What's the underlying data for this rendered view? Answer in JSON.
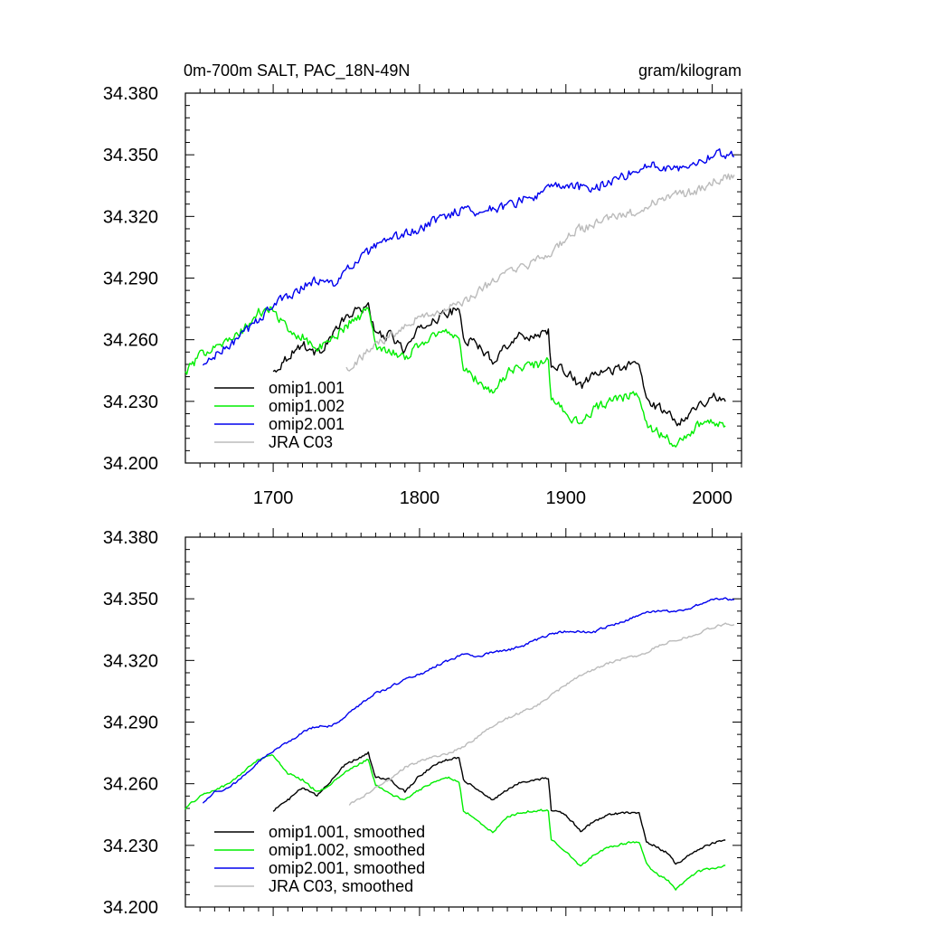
{
  "title_left": "0m-700m SALT, PAC_18N-49N",
  "title_right": "gram/kilogram",
  "chart_data": [
    {
      "type": "line",
      "xlim": [
        1640,
        2020
      ],
      "ylim": [
        34.2,
        34.38
      ],
      "xticks": [
        1700,
        1800,
        1900,
        2000
      ],
      "xtick_labels": [
        "1700",
        "1800",
        "1900",
        "2000"
      ],
      "yticks": [
        34.2,
        34.23,
        34.26,
        34.29,
        34.32,
        34.35,
        34.38
      ],
      "ytick_labels": [
        "34.200",
        "34.230",
        "34.260",
        "34.290",
        "34.320",
        "34.350",
        "34.380"
      ],
      "legend_position": "bottom-left",
      "series": [
        {
          "name": "omip1.001",
          "color": "#000000",
          "noise": 0.0032,
          "x": [
            1700,
            1710,
            1720,
            1730,
            1740,
            1750,
            1760,
            1765,
            1770,
            1780,
            1790,
            1800,
            1810,
            1820,
            1827,
            1830,
            1840,
            1850,
            1860,
            1870,
            1880,
            1888,
            1890,
            1900,
            1910,
            1920,
            1930,
            1940,
            1950,
            1955,
            1960,
            1970,
            1975,
            1980,
            1990,
            2000,
            2009
          ],
          "y": [
            34.244,
            34.252,
            34.258,
            34.253,
            34.262,
            34.271,
            34.275,
            34.277,
            34.262,
            34.262,
            34.255,
            34.265,
            34.27,
            34.273,
            34.275,
            34.261,
            34.257,
            34.25,
            34.258,
            34.262,
            34.262,
            34.265,
            34.246,
            34.245,
            34.237,
            34.243,
            34.245,
            34.247,
            34.248,
            34.231,
            34.228,
            34.225,
            34.219,
            34.222,
            34.228,
            34.232,
            34.231
          ]
        },
        {
          "name": "omip1.002",
          "color": "#00ee00",
          "noise": 0.0032,
          "x": [
            1640,
            1650,
            1660,
            1670,
            1680,
            1690,
            1700,
            1710,
            1720,
            1730,
            1740,
            1750,
            1760,
            1765,
            1770,
            1780,
            1790,
            1800,
            1810,
            1820,
            1827,
            1830,
            1840,
            1850,
            1860,
            1870,
            1880,
            1888,
            1890,
            1900,
            1910,
            1920,
            1930,
            1940,
            1950,
            1955,
            1960,
            1970,
            1975,
            1980,
            1990,
            2000,
            2009
          ],
          "y": [
            34.244,
            34.252,
            34.258,
            34.259,
            34.265,
            34.273,
            34.275,
            34.264,
            34.262,
            34.255,
            34.26,
            34.267,
            34.272,
            34.275,
            34.257,
            34.255,
            34.251,
            34.258,
            34.262,
            34.264,
            34.262,
            34.245,
            34.24,
            34.234,
            34.244,
            34.247,
            34.248,
            34.249,
            34.232,
            34.225,
            34.218,
            34.227,
            34.23,
            34.232,
            34.234,
            34.22,
            34.216,
            34.212,
            34.207,
            34.212,
            34.218,
            34.22,
            34.219
          ]
        },
        {
          "name": "omip2.001",
          "color": "#0000ee",
          "noise": 0.0032,
          "x": [
            1652,
            1660,
            1670,
            1680,
            1690,
            1700,
            1710,
            1720,
            1730,
            1740,
            1750,
            1760,
            1770,
            1780,
            1790,
            1800,
            1810,
            1820,
            1830,
            1840,
            1850,
            1860,
            1870,
            1880,
            1890,
            1900,
            1910,
            1920,
            1930,
            1940,
            1950,
            1960,
            1970,
            1980,
            1990,
            2000,
            2010,
            2015
          ],
          "y": [
            34.247,
            34.252,
            34.257,
            34.263,
            34.27,
            34.277,
            34.281,
            34.286,
            34.289,
            34.287,
            34.293,
            34.3,
            34.305,
            34.308,
            34.312,
            34.313,
            34.318,
            34.321,
            34.324,
            34.322,
            34.324,
            34.325,
            34.328,
            34.33,
            34.334,
            34.335,
            34.334,
            34.334,
            34.337,
            34.34,
            34.343,
            34.345,
            34.344,
            34.344,
            34.347,
            34.35,
            34.35,
            34.351
          ]
        },
        {
          "name": "JRA C03",
          "color": "#bbbbbb",
          "noise": 0.0032,
          "x": [
            1750,
            1760,
            1770,
            1780,
            1790,
            1800,
            1810,
            1820,
            1830,
            1840,
            1850,
            1860,
            1870,
            1880,
            1890,
            1900,
            1910,
            1920,
            1930,
            1940,
            1950,
            1960,
            1970,
            1980,
            1990,
            2000,
            2010,
            2015
          ],
          "y": [
            34.246,
            34.251,
            34.258,
            34.262,
            34.268,
            34.271,
            34.273,
            34.275,
            34.278,
            34.283,
            34.289,
            34.292,
            34.295,
            34.298,
            34.303,
            34.309,
            34.314,
            34.316,
            34.319,
            34.321,
            34.322,
            34.327,
            34.33,
            34.331,
            34.333,
            34.337,
            34.339,
            34.34
          ]
        }
      ]
    },
    {
      "type": "line",
      "xlim": [
        1640,
        2020
      ],
      "ylim": [
        34.2,
        34.38
      ],
      "xticks": [
        1700,
        1800,
        1900,
        2000
      ],
      "xtick_labels": [],
      "yticks": [
        34.2,
        34.23,
        34.26,
        34.29,
        34.32,
        34.35,
        34.38
      ],
      "ytick_labels": [
        "34.200",
        "34.230",
        "34.260",
        "34.290",
        "34.320",
        "34.350",
        "34.380"
      ],
      "legend_position": "bottom-left",
      "series": [
        {
          "name": "omip1.001, smoothed",
          "color": "#000000",
          "noise": 0.0008,
          "x": [
            1700,
            1710,
            1720,
            1730,
            1740,
            1750,
            1760,
            1765,
            1770,
            1780,
            1790,
            1800,
            1810,
            1820,
            1827,
            1830,
            1840,
            1850,
            1860,
            1870,
            1880,
            1888,
            1890,
            1900,
            1910,
            1920,
            1930,
            1940,
            1950,
            1955,
            1960,
            1970,
            1975,
            1980,
            1990,
            2000,
            2009
          ],
          "y": [
            34.247,
            34.252,
            34.258,
            34.254,
            34.262,
            34.27,
            34.273,
            34.275,
            34.263,
            34.262,
            34.256,
            34.264,
            34.269,
            34.272,
            34.273,
            34.262,
            34.257,
            34.252,
            34.257,
            34.261,
            34.262,
            34.263,
            34.247,
            34.245,
            34.237,
            34.242,
            34.245,
            34.246,
            34.246,
            34.232,
            34.23,
            34.226,
            34.221,
            34.223,
            34.228,
            34.231,
            34.233
          ]
        },
        {
          "name": "omip1.002, smoothed",
          "color": "#00ee00",
          "noise": 0.0008,
          "x": [
            1640,
            1650,
            1660,
            1670,
            1680,
            1690,
            1700,
            1710,
            1720,
            1730,
            1740,
            1750,
            1760,
            1765,
            1770,
            1780,
            1790,
            1800,
            1810,
            1820,
            1827,
            1830,
            1840,
            1850,
            1860,
            1870,
            1880,
            1888,
            1890,
            1900,
            1910,
            1920,
            1930,
            1940,
            1950,
            1955,
            1960,
            1970,
            1975,
            1980,
            1990,
            2000,
            2009
          ],
          "y": [
            34.248,
            34.254,
            34.257,
            34.26,
            34.266,
            34.272,
            34.274,
            34.265,
            34.262,
            34.256,
            34.26,
            34.266,
            34.27,
            34.272,
            34.259,
            34.255,
            34.252,
            34.257,
            34.261,
            34.263,
            34.261,
            34.247,
            34.242,
            34.236,
            34.244,
            34.246,
            34.247,
            34.247,
            34.233,
            34.227,
            34.22,
            34.226,
            34.229,
            34.231,
            34.232,
            34.221,
            34.217,
            34.213,
            34.208,
            34.212,
            34.217,
            34.219,
            34.22
          ]
        },
        {
          "name": "omip2.001, smoothed",
          "color": "#0000ee",
          "noise": 0.0008,
          "x": [
            1652,
            1660,
            1670,
            1680,
            1690,
            1700,
            1710,
            1720,
            1730,
            1740,
            1750,
            1760,
            1770,
            1780,
            1790,
            1800,
            1810,
            1820,
            1830,
            1840,
            1850,
            1860,
            1870,
            1880,
            1890,
            1900,
            1910,
            1920,
            1930,
            1940,
            1950,
            1960,
            1970,
            1980,
            1990,
            2000,
            2010,
            2015
          ],
          "y": [
            34.251,
            34.256,
            34.258,
            34.264,
            34.271,
            34.276,
            34.28,
            34.285,
            34.288,
            34.288,
            34.293,
            34.299,
            34.304,
            34.307,
            34.311,
            34.313,
            34.317,
            34.32,
            34.323,
            34.322,
            34.324,
            34.325,
            34.327,
            34.33,
            34.333,
            34.334,
            34.334,
            34.334,
            34.337,
            34.339,
            34.342,
            34.344,
            34.344,
            34.344,
            34.347,
            34.35,
            34.35,
            34.349
          ]
        },
        {
          "name": "JRA C03, smoothed",
          "color": "#bbbbbb",
          "noise": 0.0008,
          "x": [
            1752,
            1760,
            1770,
            1780,
            1790,
            1800,
            1810,
            1820,
            1830,
            1840,
            1850,
            1860,
            1870,
            1880,
            1890,
            1900,
            1910,
            1920,
            1930,
            1940,
            1950,
            1960,
            1970,
            1980,
            1990,
            2000,
            2010,
            2015
          ],
          "y": [
            34.25,
            34.253,
            34.258,
            34.262,
            34.268,
            34.271,
            34.273,
            34.275,
            34.278,
            34.283,
            34.288,
            34.292,
            34.295,
            34.298,
            34.303,
            34.308,
            34.313,
            34.316,
            34.319,
            34.321,
            34.322,
            34.326,
            34.329,
            34.331,
            34.333,
            34.336,
            34.338,
            34.337
          ]
        }
      ]
    }
  ]
}
